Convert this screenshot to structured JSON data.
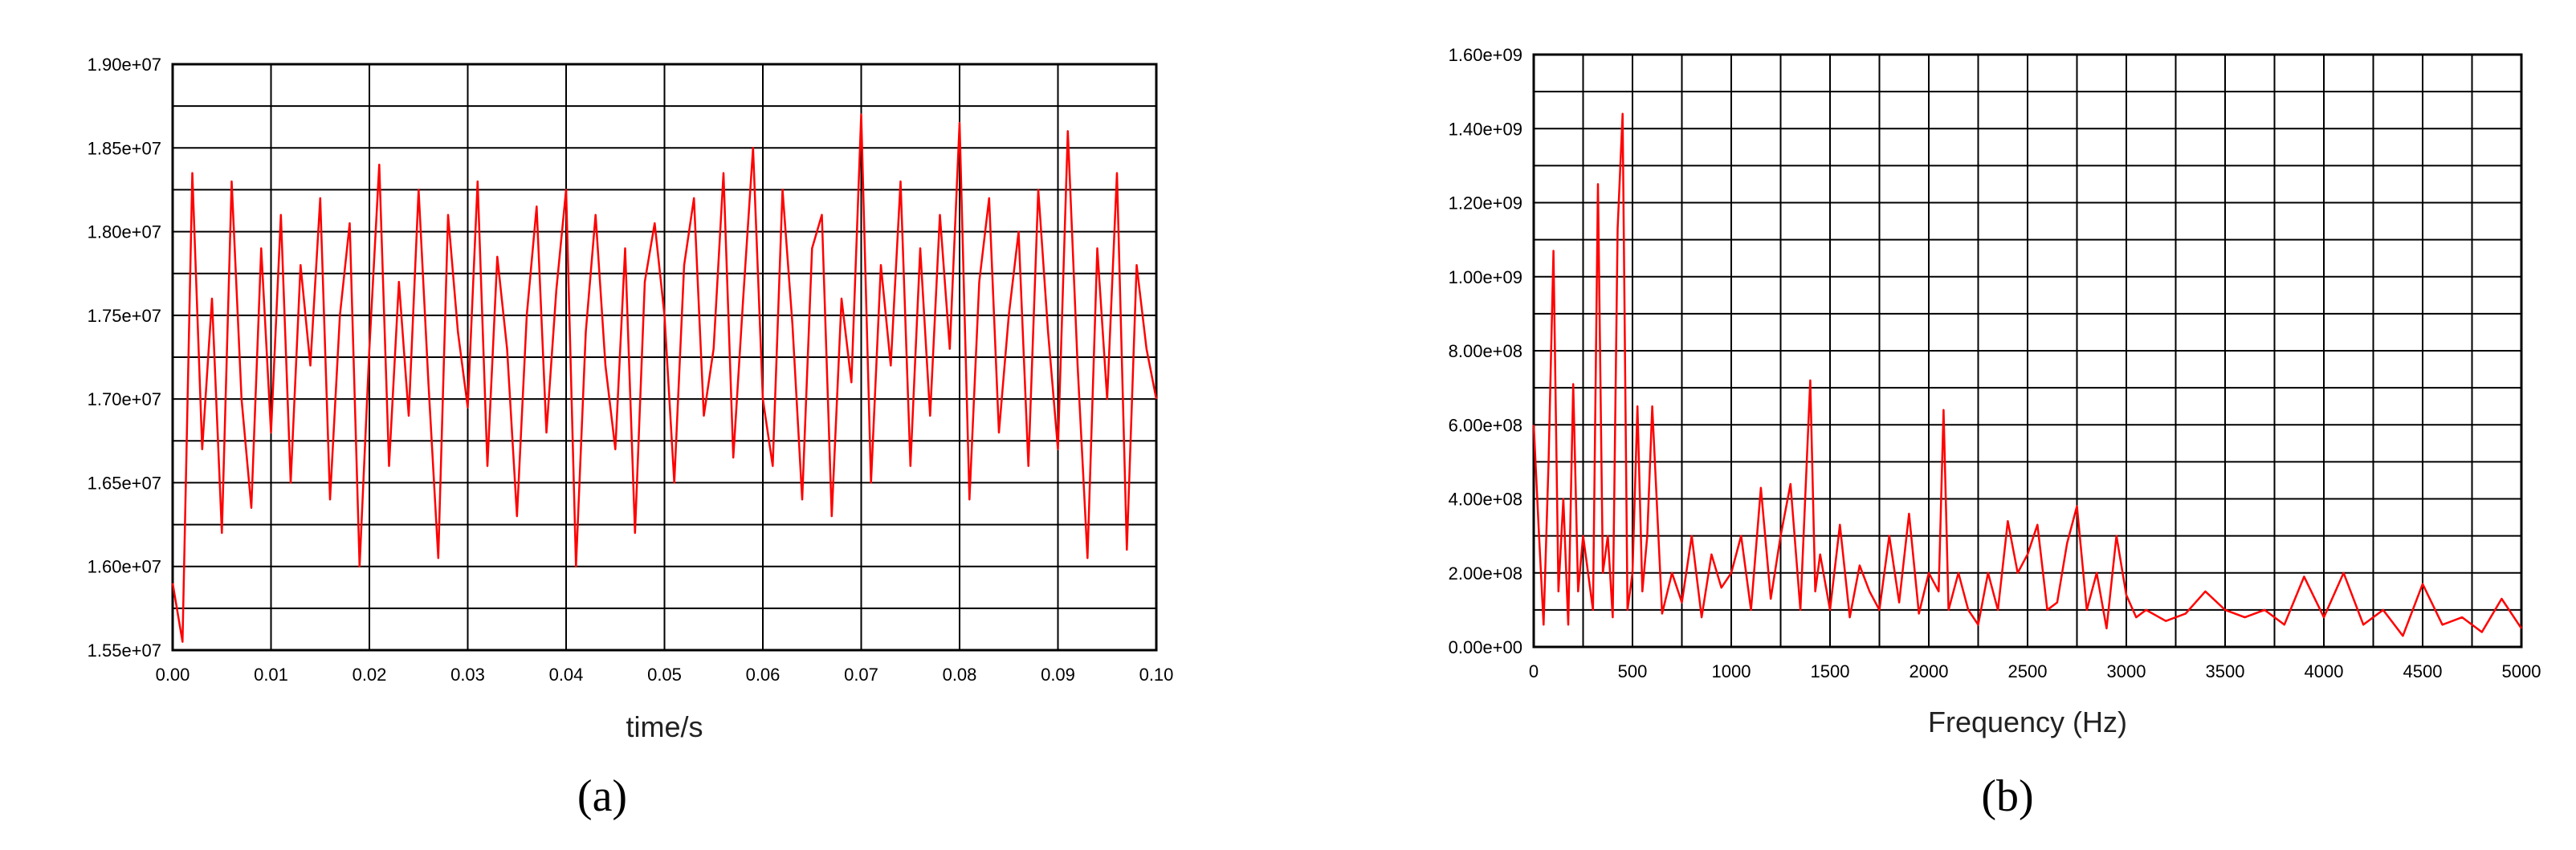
{
  "chart_data": [
    {
      "type": "line",
      "panel_label": "(a)",
      "xlabel": "time/s",
      "ylabel": "",
      "xlim": [
        0,
        0.1
      ],
      "ylim": [
        15500000,
        19000000
      ],
      "x_ticks": [
        "0.00",
        "0.01",
        "0.02",
        "0.03",
        "0.04",
        "0.05",
        "0.06",
        "0.07",
        "0.08",
        "0.09",
        "0.10"
      ],
      "y_ticks": [
        "1.55e+07",
        "1.60e+07",
        "1.65e+07",
        "1.70e+07",
        "1.75e+07",
        "1.80e+07",
        "1.85e+07",
        "1.90e+07"
      ],
      "grid": true,
      "color": "#ff0000",
      "series": [
        {
          "x": [
            0.0,
            0.001,
            0.002,
            0.003,
            0.004,
            0.005,
            0.006,
            0.007,
            0.008,
            0.009,
            0.01,
            0.011,
            0.012,
            0.013,
            0.014,
            0.015,
            0.016,
            0.017,
            0.018,
            0.019,
            0.02,
            0.021,
            0.022,
            0.023,
            0.024,
            0.025,
            0.026,
            0.027,
            0.028,
            0.029,
            0.03,
            0.031,
            0.032,
            0.033,
            0.034,
            0.035,
            0.036,
            0.037,
            0.038,
            0.039,
            0.04,
            0.041,
            0.042,
            0.043,
            0.044,
            0.045,
            0.046,
            0.047,
            0.048,
            0.049,
            0.05,
            0.051,
            0.052,
            0.053,
            0.054,
            0.055,
            0.056,
            0.057,
            0.058,
            0.059,
            0.06,
            0.061,
            0.062,
            0.063,
            0.064,
            0.065,
            0.066,
            0.067,
            0.068,
            0.069,
            0.07,
            0.071,
            0.072,
            0.073,
            0.074,
            0.075,
            0.076,
            0.077,
            0.078,
            0.079,
            0.08,
            0.081,
            0.082,
            0.083,
            0.084,
            0.085,
            0.086,
            0.087,
            0.088,
            0.089,
            0.09,
            0.091,
            0.092,
            0.093,
            0.094,
            0.095,
            0.096,
            0.097,
            0.098,
            0.099,
            0.1
          ],
          "y": [
            15900000,
            15550000,
            18350000,
            16700000,
            17600000,
            16200000,
            18300000,
            17000000,
            16350000,
            17900000,
            16800000,
            18100000,
            16500000,
            17800000,
            17200000,
            18200000,
            16400000,
            17500000,
            18050000,
            16000000,
            17300000,
            18400000,
            16600000,
            17700000,
            16900000,
            18250000,
            17100000,
            16050000,
            18100000,
            17400000,
            16950000,
            18300000,
            16600000,
            17850000,
            17300000,
            16300000,
            17500000,
            18150000,
            16800000,
            17650000,
            18250000,
            16000000,
            17400000,
            18100000,
            17200000,
            16700000,
            17900000,
            16200000,
            17700000,
            18050000,
            17500000,
            16500000,
            17800000,
            18200000,
            16900000,
            17300000,
            18350000,
            16650000,
            17600000,
            18500000,
            17000000,
            16600000,
            18250000,
            17450000,
            16400000,
            17900000,
            18100000,
            16300000,
            17600000,
            17100000,
            18700000,
            16500000,
            17800000,
            17200000,
            18300000,
            16600000,
            17900000,
            16900000,
            18100000,
            17300000,
            18650000,
            16400000,
            17700000,
            18200000,
            16800000,
            17500000,
            18000000,
            16600000,
            18250000,
            17400000,
            16700000,
            18600000,
            17200000,
            16050000,
            17900000,
            17000000,
            18350000,
            16100000,
            17800000,
            17300000,
            17000000
          ]
        }
      ]
    },
    {
      "type": "line",
      "panel_label": "(b)",
      "xlabel": "Frequency (Hz)",
      "ylabel": "",
      "xlim": [
        0,
        5000
      ],
      "ylim": [
        0,
        1600000000
      ],
      "x_ticks": [
        "0",
        "500",
        "1000",
        "1500",
        "2000",
        "2500",
        "3000",
        "3500",
        "4000",
        "4500",
        "5000"
      ],
      "y_ticks": [
        "0.00e+00",
        "2.00e+08",
        "4.00e+08",
        "6.00e+08",
        "8.00e+08",
        "1.00e+09",
        "1.20e+09",
        "1.40e+09",
        "1.60e+09"
      ],
      "grid": true,
      "color": "#ff0000",
      "series": [
        {
          "x": [
            0,
            25,
            50,
            75,
            100,
            125,
            150,
            175,
            200,
            225,
            250,
            275,
            300,
            325,
            350,
            375,
            400,
            425,
            450,
            475,
            500,
            525,
            550,
            575,
            600,
            650,
            700,
            750,
            800,
            850,
            900,
            950,
            1000,
            1050,
            1100,
            1150,
            1200,
            1250,
            1300,
            1350,
            1400,
            1425,
            1450,
            1500,
            1550,
            1600,
            1650,
            1700,
            1750,
            1800,
            1850,
            1900,
            1950,
            2000,
            2050,
            2075,
            2100,
            2150,
            2200,
            2250,
            2300,
            2350,
            2400,
            2450,
            2500,
            2550,
            2600,
            2650,
            2700,
            2750,
            2800,
            2850,
            2900,
            2950,
            3000,
            3050,
            3100,
            3200,
            3300,
            3400,
            3500,
            3600,
            3700,
            3800,
            3900,
            4000,
            4100,
            4200,
            4300,
            4400,
            4500,
            4600,
            4700,
            4800,
            4900,
            5000
          ],
          "y": [
            600000000,
            320000000,
            60000000,
            500000000,
            1070000000,
            150000000,
            400000000,
            60000000,
            710000000,
            150000000,
            300000000,
            200000000,
            100000000,
            1250000000,
            200000000,
            300000000,
            80000000,
            1130000000,
            1440000000,
            100000000,
            200000000,
            650000000,
            150000000,
            300000000,
            650000000,
            90000000,
            200000000,
            120000000,
            300000000,
            80000000,
            250000000,
            160000000,
            200000000,
            300000000,
            100000000,
            430000000,
            130000000,
            300000000,
            440000000,
            100000000,
            720000000,
            150000000,
            250000000,
            100000000,
            330000000,
            80000000,
            220000000,
            150000000,
            100000000,
            300000000,
            120000000,
            360000000,
            90000000,
            200000000,
            150000000,
            640000000,
            100000000,
            200000000,
            100000000,
            60000000,
            200000000,
            100000000,
            340000000,
            200000000,
            250000000,
            330000000,
            100000000,
            120000000,
            280000000,
            380000000,
            100000000,
            200000000,
            50000000,
            300000000,
            140000000,
            80000000,
            100000000,
            70000000,
            90000000,
            150000000,
            100000000,
            80000000,
            100000000,
            60000000,
            190000000,
            80000000,
            200000000,
            60000000,
            100000000,
            30000000,
            170000000,
            60000000,
            80000000,
            40000000,
            130000000,
            50000000
          ]
        }
      ]
    }
  ]
}
